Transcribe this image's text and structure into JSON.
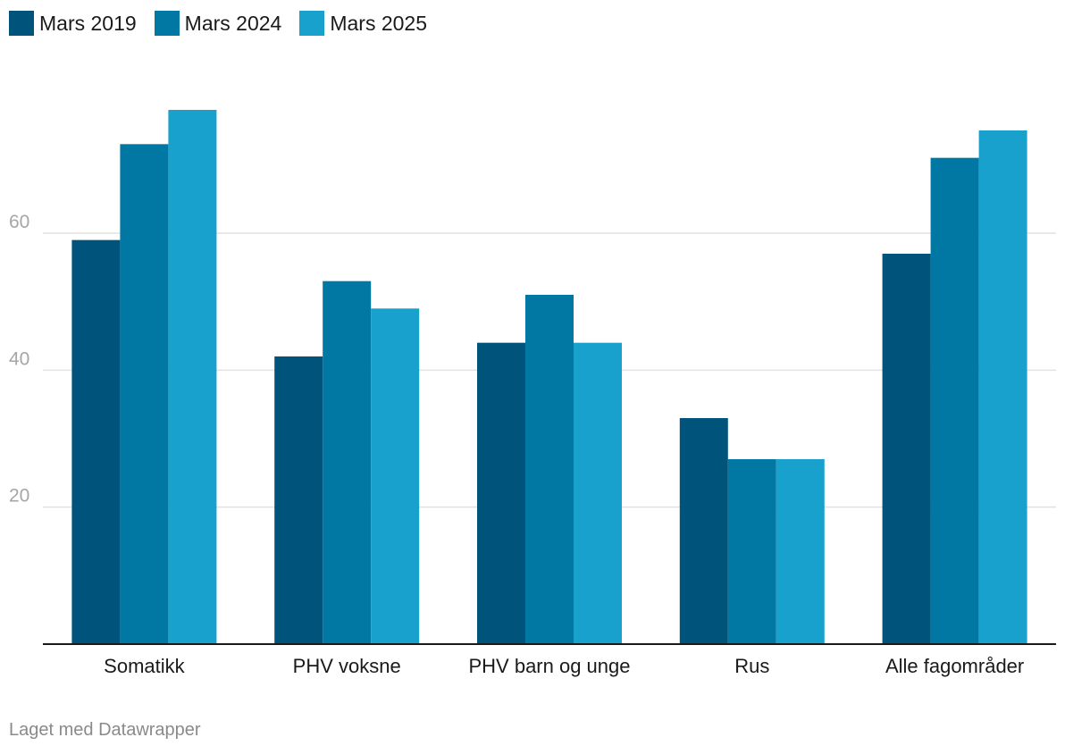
{
  "colors": {
    "s2019": "#00537a",
    "s2024": "#0078a3",
    "s2025": "#18a1cd",
    "grid": "#e2e2e2",
    "tick": "#a6a6a6",
    "axis": "#1a1a1a"
  },
  "chart_data": {
    "type": "bar",
    "categories": [
      "Somatikk",
      "PHV voksne",
      "PHV barn og unge",
      "Rus",
      "Alle fagområder"
    ],
    "series": [
      {
        "name": "Mars 2019",
        "values": [
          59,
          42,
          44,
          33,
          57
        ]
      },
      {
        "name": "Mars 2024",
        "values": [
          73,
          53,
          51,
          27,
          71
        ]
      },
      {
        "name": "Mars 2025",
        "values": [
          78,
          49,
          44,
          27,
          75
        ]
      }
    ],
    "yticks": [
      20,
      40,
      60
    ],
    "ylim": [
      0,
      80
    ],
    "grid": true,
    "legend": "top-left"
  },
  "footer": "Laget med Datawrapper"
}
